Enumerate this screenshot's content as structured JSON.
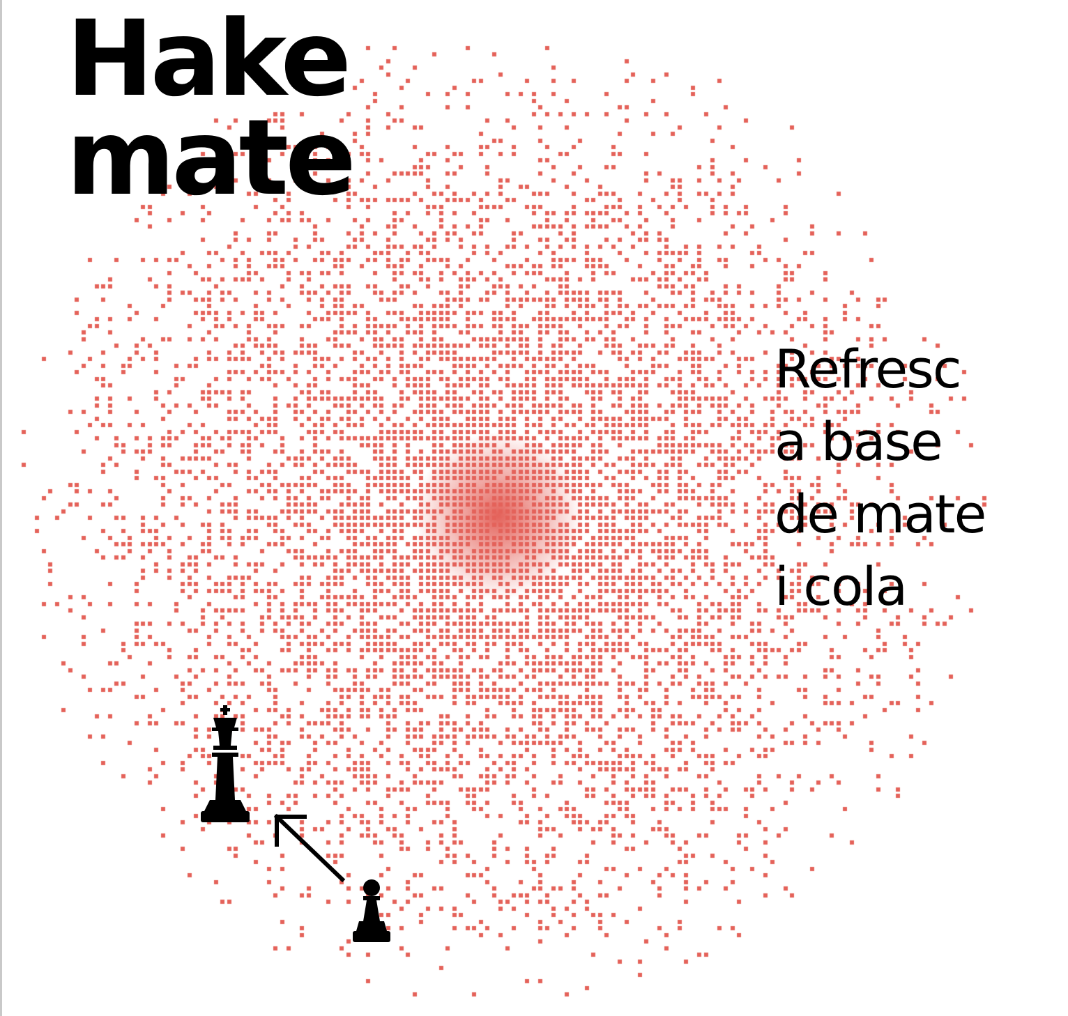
{
  "colors": {
    "background": "#ffffff",
    "halftone_dot": "#e4625a",
    "text": "#000000",
    "chess_piece": "#000000"
  },
  "brand": {
    "line1": "Hake",
    "line2": "mate"
  },
  "tagline": {
    "line1": "Refresc",
    "line2": "a base",
    "line3": "de mate",
    "line4": "i cola"
  },
  "illustration": {
    "pieces": [
      "king-icon",
      "pawn-icon"
    ],
    "arrow": "arrow-up-left-icon"
  }
}
